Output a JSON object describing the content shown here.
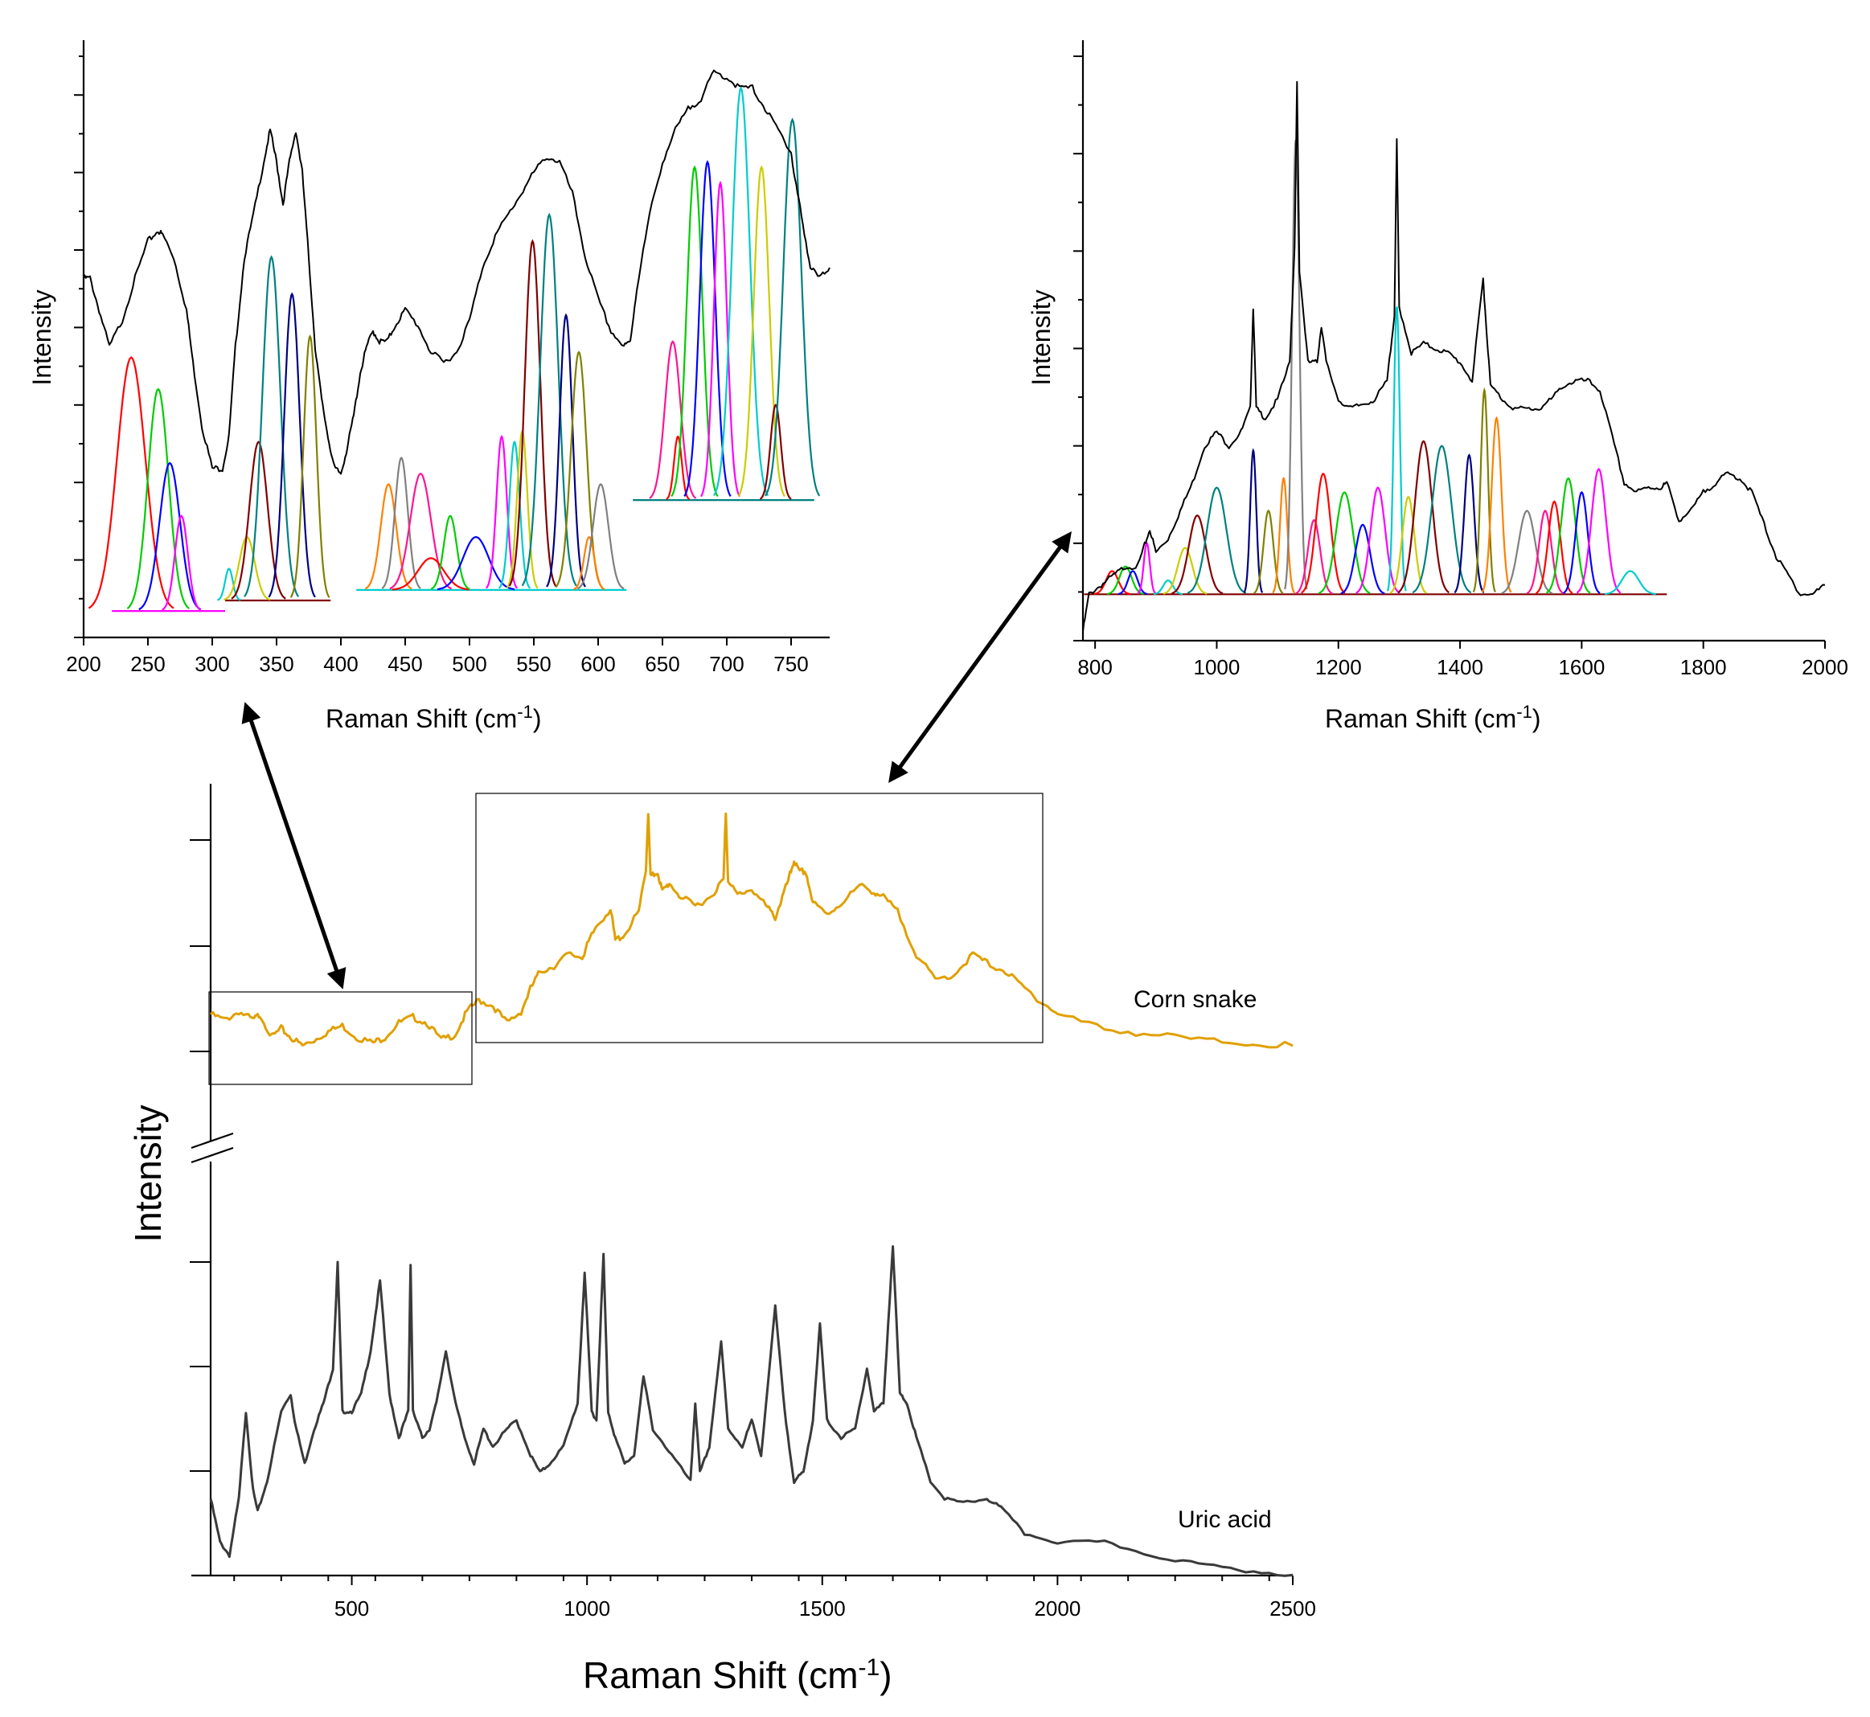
{
  "chart_data": [
    {
      "id": "main",
      "type": "line",
      "xlabel": "Raman Shift (cm⁻¹)",
      "ylabel": "Intensity",
      "xlim": [
        200,
        2500
      ],
      "xticks": [
        500,
        1000,
        1500,
        2000,
        2500
      ],
      "y_axis_break": true,
      "series": [
        {
          "name": "Corn snake",
          "color": "#e0a000",
          "x": [
            200,
            230,
            260,
            290,
            305,
            330,
            350,
            370,
            395,
            420,
            450,
            480,
            510,
            545,
            570,
            600,
            630,
            660,
            690,
            720,
            745,
            770,
            800,
            830,
            860,
            880,
            900,
            930,
            960,
            990,
            1000,
            1020,
            1050,
            1060,
            1080,
            1110,
            1125,
            1130,
            1135,
            1150,
            1160,
            1175,
            1200,
            1230,
            1260,
            1290,
            1295,
            1300,
            1320,
            1350,
            1380,
            1400,
            1415,
            1430,
            1440,
            1450,
            1465,
            1480,
            1510,
            1540,
            1580,
            1610,
            1630,
            1660,
            1700,
            1740,
            1780,
            1820,
            1850,
            1890,
            1930,
            1970,
            2000,
            2100,
            2200,
            2300,
            2400,
            2500
          ],
          "y": [
            0.22,
            0.2,
            0.23,
            0.2,
            0.22,
            0.14,
            0.17,
            0.14,
            0.11,
            0.13,
            0.16,
            0.18,
            0.14,
            0.12,
            0.14,
            0.19,
            0.21,
            0.19,
            0.13,
            0.15,
            0.23,
            0.27,
            0.25,
            0.19,
            0.23,
            0.31,
            0.37,
            0.39,
            0.43,
            0.42,
            0.46,
            0.53,
            0.59,
            0.48,
            0.5,
            0.58,
            0.72,
            0.93,
            0.7,
            0.72,
            0.65,
            0.68,
            0.63,
            0.6,
            0.63,
            0.69,
            0.93,
            0.68,
            0.64,
            0.66,
            0.6,
            0.56,
            0.63,
            0.7,
            0.76,
            0.72,
            0.72,
            0.61,
            0.57,
            0.61,
            0.67,
            0.65,
            0.63,
            0.58,
            0.43,
            0.34,
            0.36,
            0.43,
            0.4,
            0.37,
            0.31,
            0.26,
            0.22,
            0.17,
            0.15,
            0.13,
            0.12,
            0.11
          ]
        },
        {
          "name": "Uric acid",
          "color": "#3a3a3a",
          "x": [
            200,
            220,
            240,
            260,
            275,
            290,
            300,
            320,
            350,
            370,
            380,
            400,
            420,
            440,
            460,
            470,
            480,
            500,
            520,
            540,
            560,
            580,
            600,
            620,
            625,
            630,
            650,
            665,
            680,
            700,
            720,
            740,
            760,
            780,
            800,
            830,
            850,
            880,
            900,
            920,
            950,
            980,
            995,
            1010,
            1020,
            1035,
            1045,
            1060,
            1080,
            1100,
            1120,
            1140,
            1180,
            1220,
            1230,
            1240,
            1260,
            1285,
            1300,
            1330,
            1350,
            1370,
            1400,
            1420,
            1440,
            1460,
            1480,
            1495,
            1510,
            1540,
            1570,
            1595,
            1610,
            1630,
            1650,
            1665,
            1680,
            1700,
            1730,
            1760,
            1800,
            1850,
            1880,
            1930,
            2000,
            2100,
            2200,
            2300,
            2400,
            2500
          ],
          "y": [
            0.18,
            0.08,
            0.05,
            0.18,
            0.38,
            0.2,
            0.15,
            0.22,
            0.38,
            0.42,
            0.35,
            0.26,
            0.34,
            0.4,
            0.48,
            0.72,
            0.38,
            0.38,
            0.42,
            0.52,
            0.68,
            0.42,
            0.32,
            0.38,
            0.72,
            0.38,
            0.32,
            0.34,
            0.4,
            0.52,
            0.4,
            0.32,
            0.26,
            0.34,
            0.3,
            0.34,
            0.36,
            0.28,
            0.24,
            0.26,
            0.3,
            0.4,
            0.7,
            0.38,
            0.36,
            0.74,
            0.38,
            0.32,
            0.26,
            0.28,
            0.46,
            0.34,
            0.28,
            0.22,
            0.4,
            0.24,
            0.3,
            0.54,
            0.34,
            0.3,
            0.36,
            0.28,
            0.62,
            0.38,
            0.22,
            0.24,
            0.36,
            0.58,
            0.36,
            0.32,
            0.34,
            0.48,
            0.38,
            0.4,
            0.76,
            0.42,
            0.4,
            0.32,
            0.22,
            0.18,
            0.17,
            0.18,
            0.16,
            0.1,
            0.08,
            0.08,
            0.05,
            0.03,
            0.015,
            0.005
          ]
        }
      ]
    },
    {
      "id": "inset-low",
      "type": "line",
      "xlabel": "Raman Shift (cm⁻¹)",
      "ylabel": "Intensity",
      "xlim": [
        200,
        780
      ],
      "xticks": [
        200,
        250,
        300,
        350,
        400,
        450,
        500,
        550,
        600,
        650,
        700,
        750
      ],
      "series": [
        {
          "name": "spectrum",
          "color": "#000000",
          "x": [
            200,
            205,
            212,
            220,
            230,
            240,
            250,
            258,
            262,
            270,
            280,
            285,
            292,
            300,
            308,
            313,
            318,
            325,
            332,
            340,
            345,
            350,
            355,
            360,
            365,
            370,
            375,
            380,
            385,
            390,
            395,
            400,
            405,
            410,
            415,
            420,
            425,
            430,
            436,
            442,
            450,
            460,
            470,
            480,
            490,
            500,
            510,
            520,
            530,
            540,
            550,
            560,
            570,
            580,
            590,
            600,
            610,
            620,
            625,
            630,
            640,
            650,
            660,
            670,
            680,
            690,
            700,
            710,
            720,
            730,
            740,
            750,
            752,
            758,
            765,
            772,
            780
          ],
          "y": [
            0.68,
            0.68,
            0.62,
            0.55,
            0.6,
            0.68,
            0.75,
            0.77,
            0.76,
            0.72,
            0.62,
            0.52,
            0.4,
            0.32,
            0.32,
            0.38,
            0.55,
            0.72,
            0.8,
            0.9,
            0.96,
            0.9,
            0.82,
            0.9,
            0.96,
            0.88,
            0.72,
            0.55,
            0.45,
            0.38,
            0.32,
            0.31,
            0.36,
            0.42,
            0.5,
            0.55,
            0.58,
            0.56,
            0.56,
            0.59,
            0.62,
            0.59,
            0.54,
            0.52,
            0.54,
            0.6,
            0.7,
            0.76,
            0.8,
            0.84,
            0.88,
            0.91,
            0.9,
            0.84,
            0.72,
            0.64,
            0.58,
            0.55,
            0.56,
            0.66,
            0.8,
            0.9,
            0.96,
            1.0,
            1.02,
            1.07,
            1.06,
            1.04,
            1.04,
            1.0,
            0.96,
            0.92,
            0.88,
            0.8,
            0.7,
            0.68,
            0.7
          ]
        }
      ]
    },
    {
      "id": "inset-high",
      "type": "line",
      "xlabel": "Raman Shift (cm⁻¹)",
      "ylabel": "Intensity",
      "xlim": [
        780,
        2000
      ],
      "xticks": [
        800,
        1000,
        1200,
        1400,
        1600,
        1800,
        2000
      ],
      "series": [
        {
          "name": "spectrum",
          "color": "#000000",
          "x": [
            780,
            790,
            810,
            830,
            850,
            870,
            880,
            890,
            900,
            920,
            940,
            960,
            980,
            1000,
            1020,
            1040,
            1055,
            1060,
            1065,
            1080,
            1100,
            1120,
            1128,
            1132,
            1136,
            1150,
            1165,
            1172,
            1180,
            1200,
            1220,
            1240,
            1260,
            1280,
            1292,
            1296,
            1300,
            1320,
            1340,
            1360,
            1380,
            1400,
            1420,
            1438,
            1442,
            1450,
            1470,
            1490,
            1510,
            1530,
            1550,
            1570,
            1590,
            1610,
            1630,
            1650,
            1670,
            1690,
            1710,
            1730,
            1740,
            1760,
            1780,
            1800,
            1820,
            1840,
            1860,
            1880,
            1900,
            1920,
            1940,
            1960,
            1980,
            2000
          ],
          "y": [
            0.02,
            0.1,
            0.12,
            0.14,
            0.16,
            0.16,
            0.2,
            0.24,
            0.19,
            0.22,
            0.28,
            0.34,
            0.42,
            0.45,
            0.42,
            0.45,
            0.5,
            0.72,
            0.5,
            0.48,
            0.52,
            0.6,
            0.85,
            1.2,
            0.8,
            0.6,
            0.6,
            0.68,
            0.6,
            0.52,
            0.5,
            0.51,
            0.52,
            0.56,
            0.7,
            1.08,
            0.72,
            0.62,
            0.64,
            0.63,
            0.62,
            0.6,
            0.56,
            0.78,
            0.7,
            0.55,
            0.52,
            0.5,
            0.5,
            0.5,
            0.52,
            0.55,
            0.56,
            0.56,
            0.54,
            0.44,
            0.34,
            0.32,
            0.33,
            0.33,
            0.34,
            0.26,
            0.28,
            0.32,
            0.34,
            0.36,
            0.35,
            0.32,
            0.25,
            0.18,
            0.14,
            0.1,
            0.1,
            0.12
          ]
        }
      ]
    }
  ],
  "labels": {
    "corn_snake": "Corn snake",
    "uric_acid": "Uric acid",
    "main_xlabel_text": "Raman Shift (cm",
    "main_xlabel_sup": "-1",
    "main_xlabel_close": ")",
    "main_ylabel": "Intensity",
    "inset_xlabel_text": "Raman Shift (cm",
    "inset_xlabel_sup": "-1",
    "inset_xlabel_close": ")",
    "inset_ylabel": "Intensity"
  },
  "colors": {
    "corn_snake": "#e0a000",
    "uric_acid": "#3a3a3a",
    "fit_palette": [
      "#ff0000",
      "#00cc00",
      "#0000ff",
      "#ff00ff",
      "#00cccc",
      "#cccc00",
      "#800000",
      "#008080",
      "#000080",
      "#808000",
      "#ff8000",
      "#808080",
      "#ff1493"
    ]
  }
}
